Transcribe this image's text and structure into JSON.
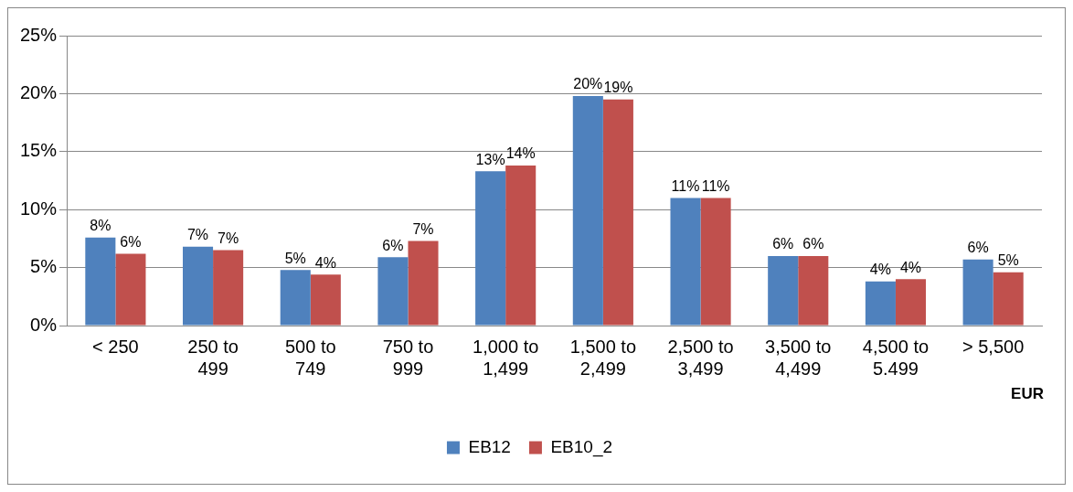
{
  "chart_data": {
    "type": "bar",
    "xlabel": "EUR",
    "categories": [
      "< 250",
      "250 to 499",
      "500 to 749",
      "750 to 999",
      "1,000 to 1,499",
      "1,500 to 2,499",
      "2,500 to 3,499",
      "3,500 to 4,499",
      "4,500 to 5.499",
      "> 5,500"
    ],
    "series": [
      {
        "name": "EB12",
        "color": "#4f81bd",
        "values": [
          7.6,
          6.8,
          4.8,
          5.9,
          13.3,
          19.8,
          11.0,
          6.0,
          3.8,
          5.7
        ],
        "value_labels": [
          "8%",
          "7%",
          "5%",
          "6%",
          "13%",
          "20%",
          "11%",
          "6%",
          "4%",
          "6%"
        ]
      },
      {
        "name": "EB10_2",
        "color": "#c0504d",
        "values": [
          6.2,
          6.5,
          4.4,
          7.3,
          13.8,
          19.5,
          11.0,
          6.0,
          4.0,
          4.6
        ],
        "value_labels": [
          "6%",
          "7%",
          "4%",
          "7%",
          "14%",
          "19%",
          "11%",
          "6%",
          "4%",
          "5%"
        ]
      }
    ],
    "ylim": [
      0,
      25
    ],
    "yticks": [
      {
        "value": 0,
        "label": "0%"
      },
      {
        "value": 5,
        "label": "5%"
      },
      {
        "value": 10,
        "label": "10%"
      },
      {
        "value": 15,
        "label": "15%"
      },
      {
        "value": 20,
        "label": "20%"
      },
      {
        "value": 25,
        "label": "25%"
      }
    ],
    "grid": "y",
    "legend": "bottom"
  }
}
